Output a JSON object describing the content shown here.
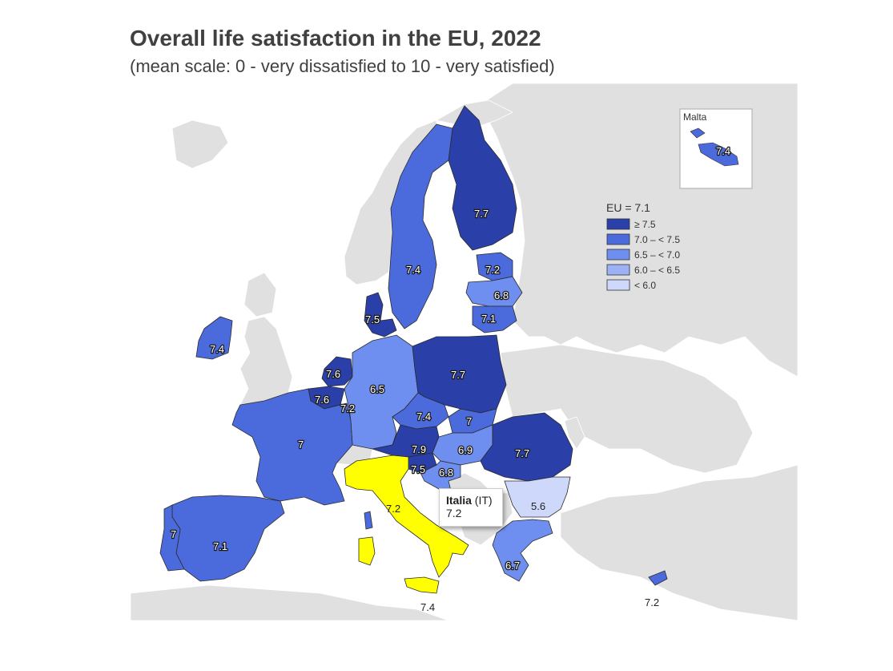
{
  "title": "Overall life satisfaction in the EU, 2022",
  "subtitle": "(mean scale: 0 - very dissatisfied to 10 - very satisfied)",
  "legend": {
    "title": "EU = 7.1",
    "classes": [
      {
        "label": "≥ 7.5",
        "color": "#2a3fa8"
      },
      {
        "label": "7.0 – < 7.5",
        "color": "#4b6bdc"
      },
      {
        "label": "6.5 – < 7.0",
        "color": "#6f8ff0"
      },
      {
        "label": "6.0 – < 6.5",
        "color": "#9db2f6"
      },
      {
        "label": "< 6.0",
        "color": "#cdd8fb"
      }
    ]
  },
  "inset": {
    "title": "Malta",
    "value": "7.4"
  },
  "tooltip": {
    "country": "Italia",
    "code": "(IT)",
    "value": "7.2"
  },
  "highlight_color": "#ffff00",
  "nonEU_color": "#e0e0e0",
  "values": {
    "FI": "7.7",
    "SE": "7.4",
    "EE": "7.2",
    "LV": "6.8",
    "LT": "7.1",
    "DK": "7.5",
    "IE": "7.4",
    "NL": "7.6",
    "BE": "7.6",
    "LU": "7.2",
    "DE": "6.5",
    "PL": "7.7",
    "CZ": "7.4",
    "SK": "7",
    "FR": "7",
    "AT": "7.9",
    "HU": "6.9",
    "SI": "7.5",
    "HR": "6.8",
    "RO": "7.7",
    "BG": "5.6",
    "IT": "7.2",
    "PT": "7",
    "ES": "7.1",
    "EL": "6.7",
    "CY": "7.2",
    "SICILY": "7.4"
  }
}
